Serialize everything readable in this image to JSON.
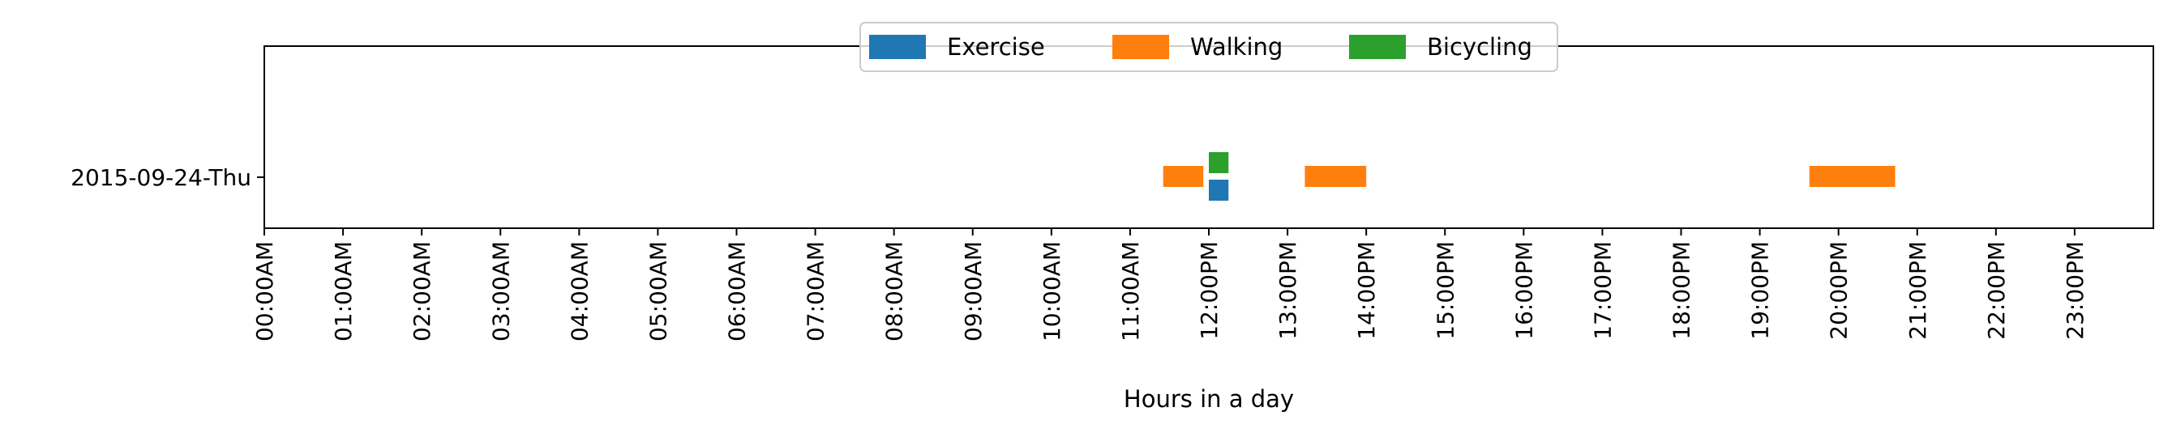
{
  "chart_data": {
    "type": "timeline",
    "xlabel": "Hours in a day",
    "xlim": [
      0,
      24
    ],
    "x_ticks": [
      {
        "value": 0,
        "label": "00:00AM"
      },
      {
        "value": 1,
        "label": "01:00AM"
      },
      {
        "value": 2,
        "label": "02:00AM"
      },
      {
        "value": 3,
        "label": "03:00AM"
      },
      {
        "value": 4,
        "label": "04:00AM"
      },
      {
        "value": 5,
        "label": "05:00AM"
      },
      {
        "value": 6,
        "label": "06:00AM"
      },
      {
        "value": 7,
        "label": "07:00AM"
      },
      {
        "value": 8,
        "label": "08:00AM"
      },
      {
        "value": 9,
        "label": "09:00AM"
      },
      {
        "value": 10,
        "label": "10:00AM"
      },
      {
        "value": 11,
        "label": "11:00AM"
      },
      {
        "value": 12,
        "label": "12:00PM"
      },
      {
        "value": 13,
        "label": "13:00PM"
      },
      {
        "value": 14,
        "label": "14:00PM"
      },
      {
        "value": 15,
        "label": "15:00PM"
      },
      {
        "value": 16,
        "label": "16:00PM"
      },
      {
        "value": 17,
        "label": "17:00PM"
      },
      {
        "value": 18,
        "label": "18:00PM"
      },
      {
        "value": 19,
        "label": "19:00PM"
      },
      {
        "value": 20,
        "label": "20:00PM"
      },
      {
        "value": 21,
        "label": "21:00PM"
      },
      {
        "value": 22,
        "label": "22:00PM"
      },
      {
        "value": 23,
        "label": "23:00PM"
      }
    ],
    "rows": [
      "2015-09-24-Thu"
    ],
    "legend_position": "top-center",
    "grid": false,
    "series": [
      {
        "name": "Exercise",
        "color": "#1f77b4",
        "lane": "below",
        "segments": [
          {
            "row": "2015-09-24-Thu",
            "start": 12.0,
            "end": 12.25
          }
        ]
      },
      {
        "name": "Walking",
        "color": "#ff7f0e",
        "lane": "center",
        "segments": [
          {
            "row": "2015-09-24-Thu",
            "start": 11.42,
            "end": 11.93
          },
          {
            "row": "2015-09-24-Thu",
            "start": 13.22,
            "end": 14.0
          },
          {
            "row": "2015-09-24-Thu",
            "start": 19.63,
            "end": 20.72
          }
        ]
      },
      {
        "name": "Bicycling",
        "color": "#2ca02c",
        "lane": "above",
        "segments": [
          {
            "row": "2015-09-24-Thu",
            "start": 12.0,
            "end": 12.25
          }
        ]
      }
    ]
  }
}
